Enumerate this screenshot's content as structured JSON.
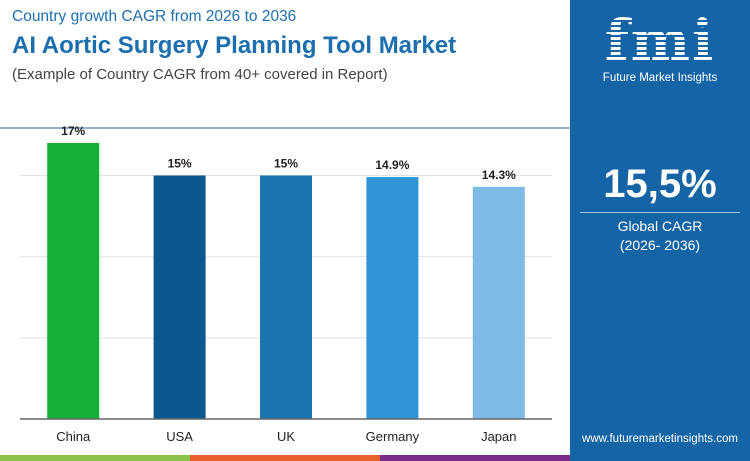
{
  "header": {
    "subtitle": "Country growth CAGR from 2026 to 2036",
    "title": "AI Aortic Surgery Planning Tool Market",
    "note": "(Example of Country CAGR from 40+ covered in Report)"
  },
  "side_panel": {
    "logo_text": "fmi",
    "brand": "Future Market Insights",
    "global_cagr": "15,5%",
    "global_cagr_label": "Global CAGR",
    "global_cagr_period": "(2026- 2036)",
    "url": "www.futuremarketinsights.com",
    "background": "#1565a6"
  },
  "strip_colors": [
    "#8bc34a",
    "#e8602c",
    "#7b2d8b"
  ],
  "chart_data": {
    "type": "bar",
    "categories": [
      "China",
      "USA",
      "UK",
      "Germany",
      "Japan"
    ],
    "values": [
      17,
      15,
      15,
      14.9,
      14.3
    ],
    "data_labels": [
      "17%",
      "15%",
      "15%",
      "14.9%",
      "14.3%"
    ],
    "colors": [
      "#15b03a",
      "#0b5890",
      "#1a74b0",
      "#2f95d6",
      "#7dbbe6"
    ],
    "ylim": [
      0,
      17
    ],
    "grid": true,
    "xlabel": "",
    "ylabel": ""
  }
}
